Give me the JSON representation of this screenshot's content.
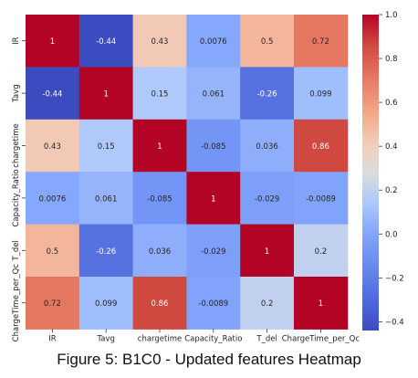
{
  "caption": "Figure 5: B1C0 - Updated features Heatmap",
  "chart_data": {
    "type": "heatmap",
    "title": "",
    "xlabel": "",
    "ylabel": "",
    "labels": [
      "IR",
      "Tavg",
      "chargetime",
      "Capacity_Ratio",
      "T_del",
      "ChargeTime_per_Qc"
    ],
    "matrix": [
      [
        1,
        -0.44,
        0.43,
        0.0076,
        0.5,
        0.72
      ],
      [
        -0.44,
        1,
        0.15,
        0.061,
        -0.26,
        0.099
      ],
      [
        0.43,
        0.15,
        1,
        -0.085,
        0.036,
        0.86
      ],
      [
        0.0076,
        0.061,
        -0.085,
        1,
        -0.029,
        -0.0089
      ],
      [
        0.5,
        -0.26,
        0.036,
        -0.029,
        1,
        0.2
      ],
      [
        0.72,
        0.099,
        0.86,
        -0.0089,
        0.2,
        1
      ]
    ],
    "cell_labels": [
      [
        "1",
        "-0.44",
        "0.43",
        "0.0076",
        "0.5",
        "0.72"
      ],
      [
        "-0.44",
        "1",
        "0.15",
        "0.061",
        "-0.26",
        "0.099"
      ],
      [
        "0.43",
        "0.15",
        "1",
        "-0.085",
        "0.036",
        "0.86"
      ],
      [
        "0.0076",
        "0.061",
        "-0.085",
        "1",
        "-0.029",
        "-0.0089"
      ],
      [
        "0.5",
        "-0.26",
        "0.036",
        "-0.029",
        "1",
        "0.2"
      ],
      [
        "0.72",
        "0.099",
        "0.86",
        "-0.0089",
        "0.2",
        "1"
      ]
    ],
    "colormap": "coolwarm",
    "vmin": -0.44,
    "vmax": 1.0,
    "colorbar_ticks": [
      1.0,
      0.8,
      0.6,
      0.4,
      0.2,
      0.0,
      -0.2,
      -0.4
    ],
    "colorbar_tick_labels": [
      "1.0",
      "0.8",
      "0.6",
      "0.4",
      "0.2",
      "0.0",
      "−0.2",
      "−0.4"
    ],
    "colors": {
      "low": "#3b4cc0",
      "mid": "#dddddd",
      "high": "#b40426"
    }
  }
}
